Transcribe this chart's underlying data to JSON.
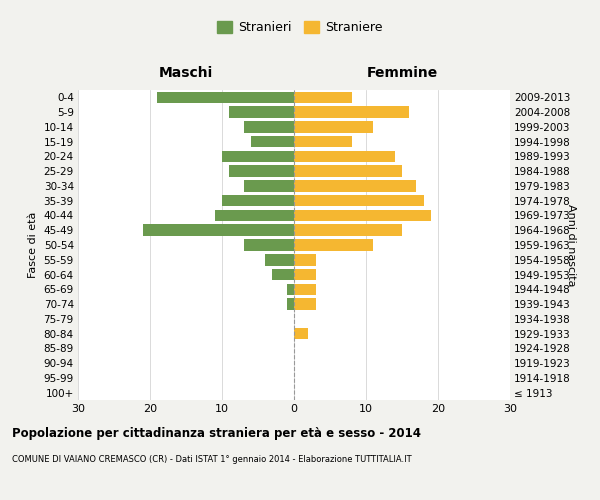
{
  "age_groups": [
    "100+",
    "95-99",
    "90-94",
    "85-89",
    "80-84",
    "75-79",
    "70-74",
    "65-69",
    "60-64",
    "55-59",
    "50-54",
    "45-49",
    "40-44",
    "35-39",
    "30-34",
    "25-29",
    "20-24",
    "15-19",
    "10-14",
    "5-9",
    "0-4"
  ],
  "birth_years": [
    "≤ 1913",
    "1914-1918",
    "1919-1923",
    "1924-1928",
    "1929-1933",
    "1934-1938",
    "1939-1943",
    "1944-1948",
    "1949-1953",
    "1954-1958",
    "1959-1963",
    "1964-1968",
    "1969-1973",
    "1974-1978",
    "1979-1983",
    "1984-1988",
    "1989-1993",
    "1994-1998",
    "1999-2003",
    "2004-2008",
    "2009-2013"
  ],
  "males": [
    0,
    0,
    0,
    0,
    0,
    0,
    1,
    1,
    3,
    4,
    7,
    21,
    11,
    10,
    7,
    9,
    10,
    6,
    7,
    9,
    19
  ],
  "females": [
    0,
    0,
    0,
    0,
    2,
    0,
    3,
    3,
    3,
    3,
    11,
    15,
    19,
    18,
    17,
    15,
    14,
    8,
    11,
    16,
    8
  ],
  "male_color": "#6a9a4e",
  "female_color": "#f5b731",
  "title": "Popolazione per cittadinanza straniera per età e sesso - 2014",
  "subtitle": "COMUNE DI VAIANO CREMASCO (CR) - Dati ISTAT 1° gennaio 2014 - Elaborazione TUTTITALIA.IT",
  "xlabel_left": "Maschi",
  "xlabel_right": "Femmine",
  "ylabel_left": "Fasce di età",
  "ylabel_right": "Anni di nascita",
  "legend_male": "Stranieri",
  "legend_female": "Straniere",
  "xlim": 30,
  "background_color": "#f2f2ee",
  "bar_bg_color": "#ffffff"
}
